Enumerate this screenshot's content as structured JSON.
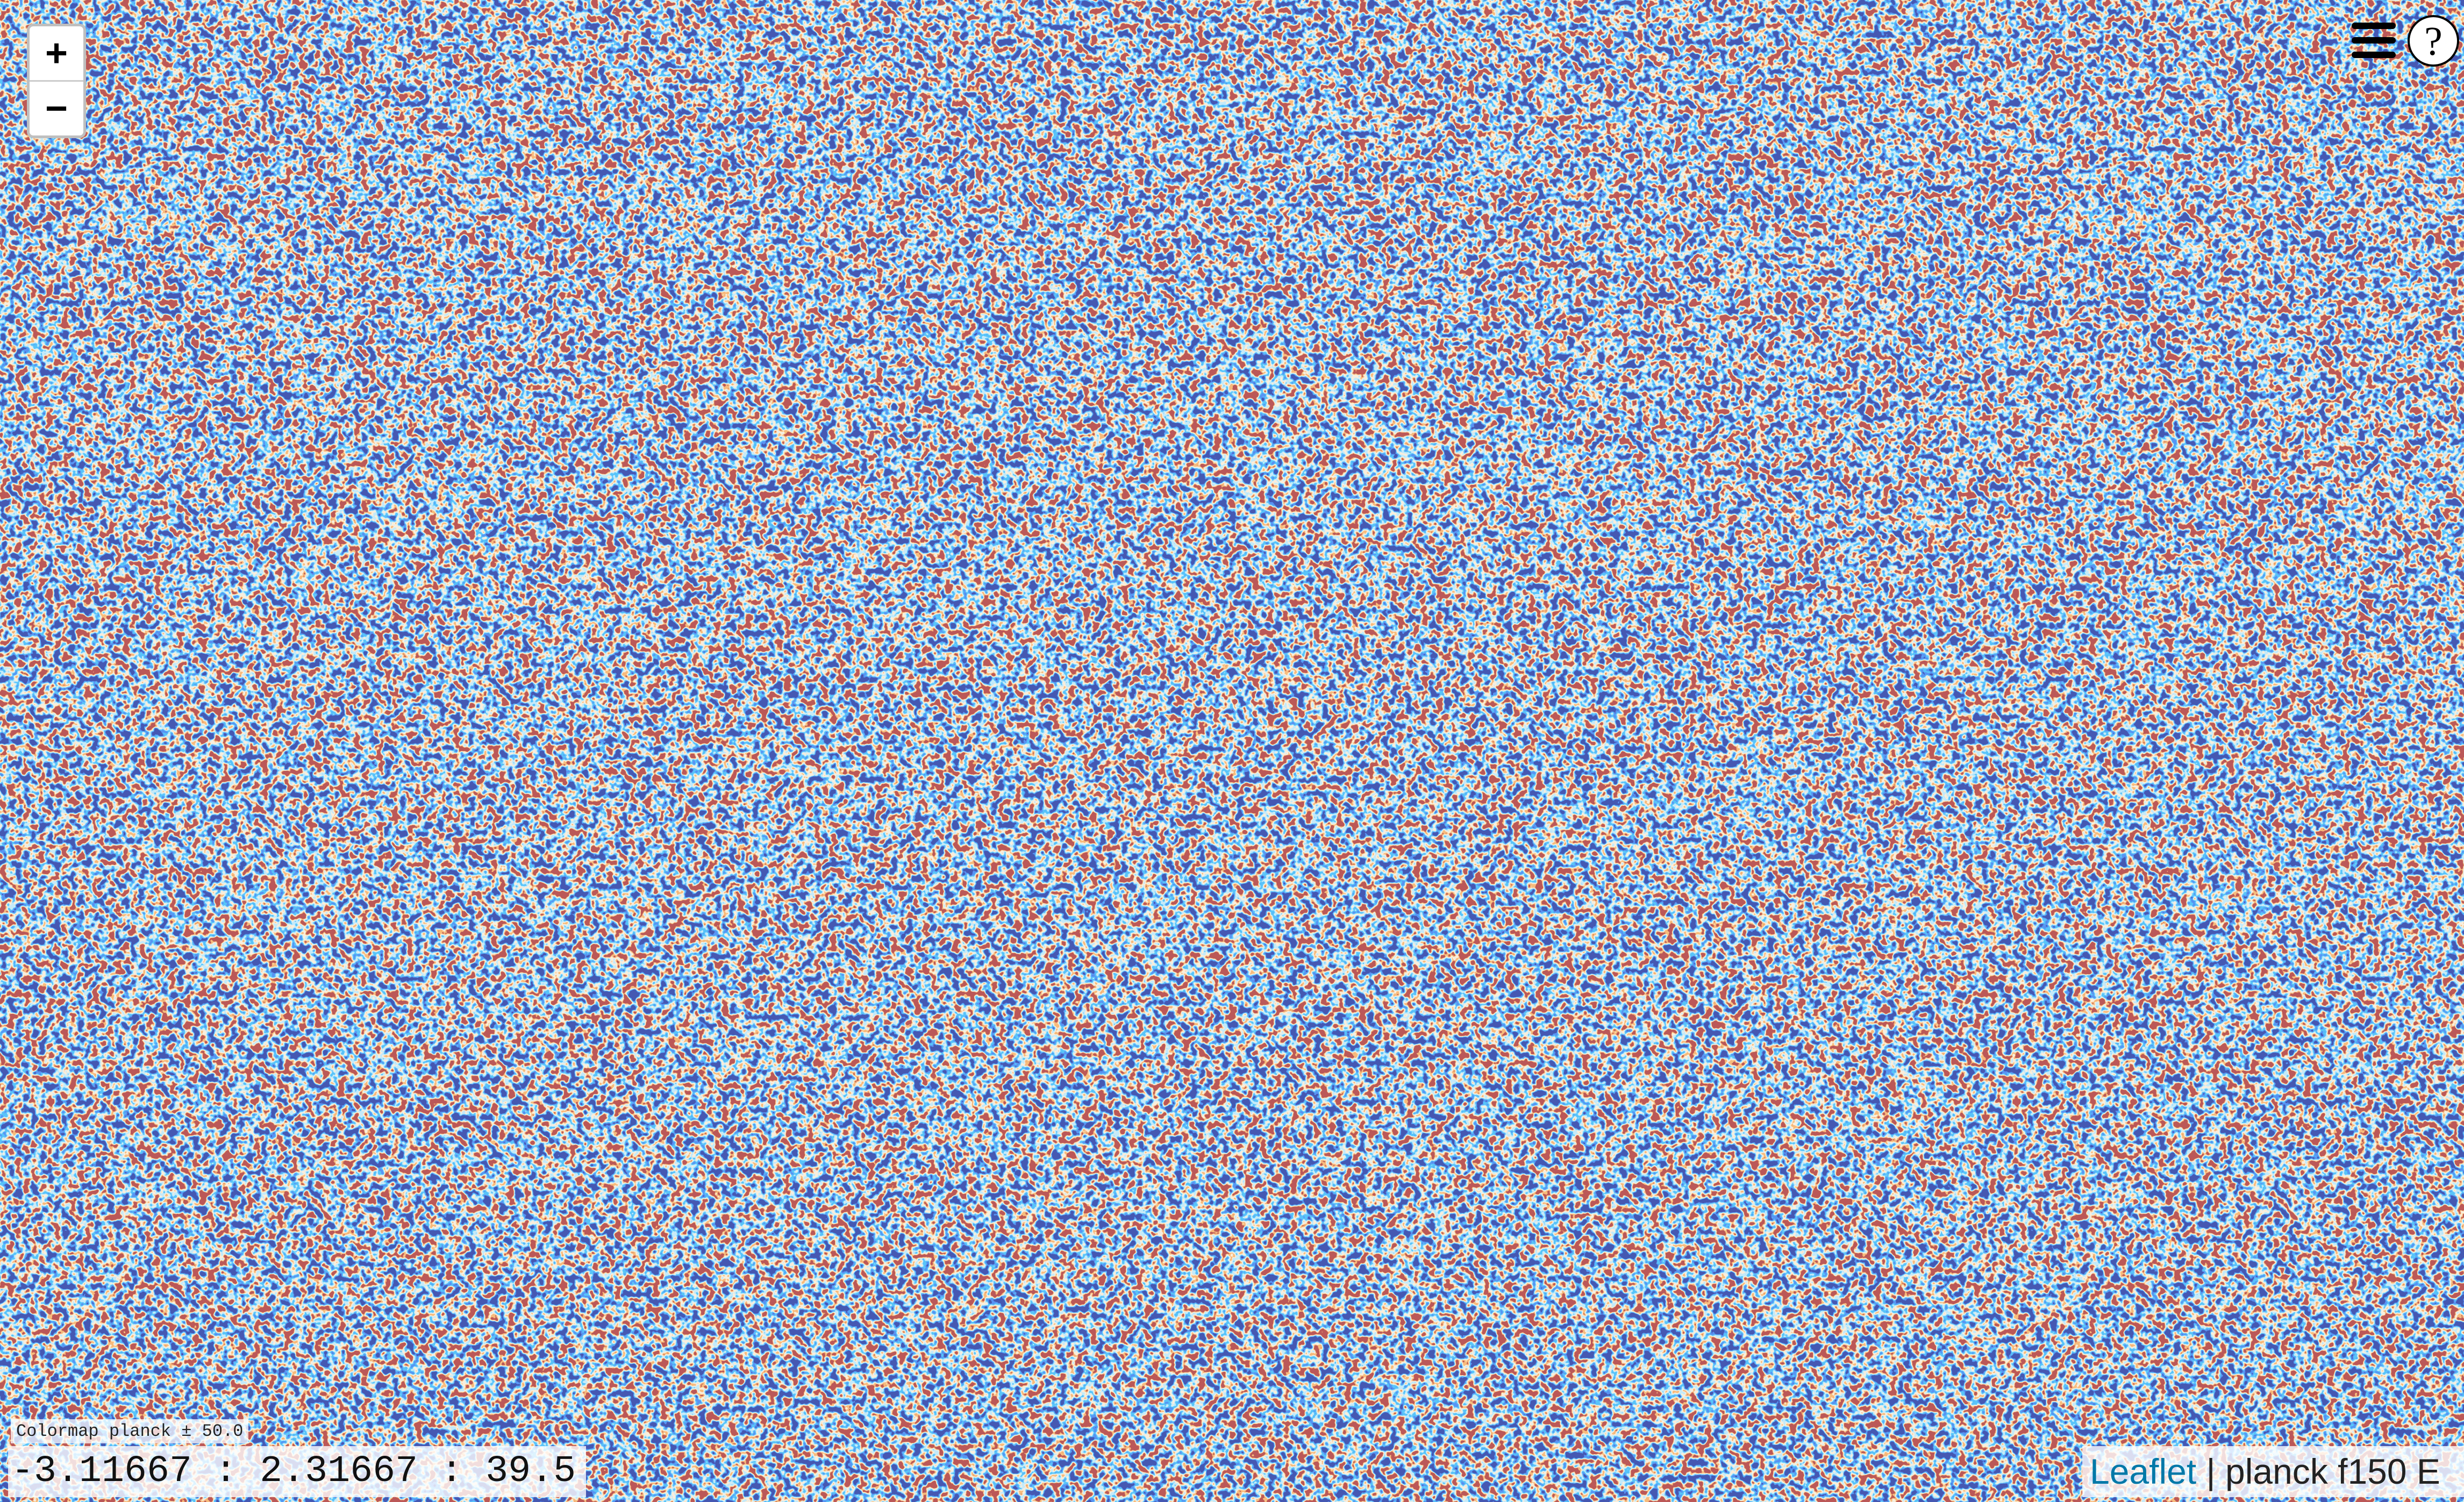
{
  "zoom_controls": {
    "zoom_in": "+",
    "zoom_out": "−"
  },
  "help": "?",
  "colormap_label": "Colormap planck ± 50.0",
  "coordinates": "-3.11667 : 2.31667 : 39.5",
  "attribution": {
    "link": "Leaflet",
    "text": "| planck f150 E"
  }
}
